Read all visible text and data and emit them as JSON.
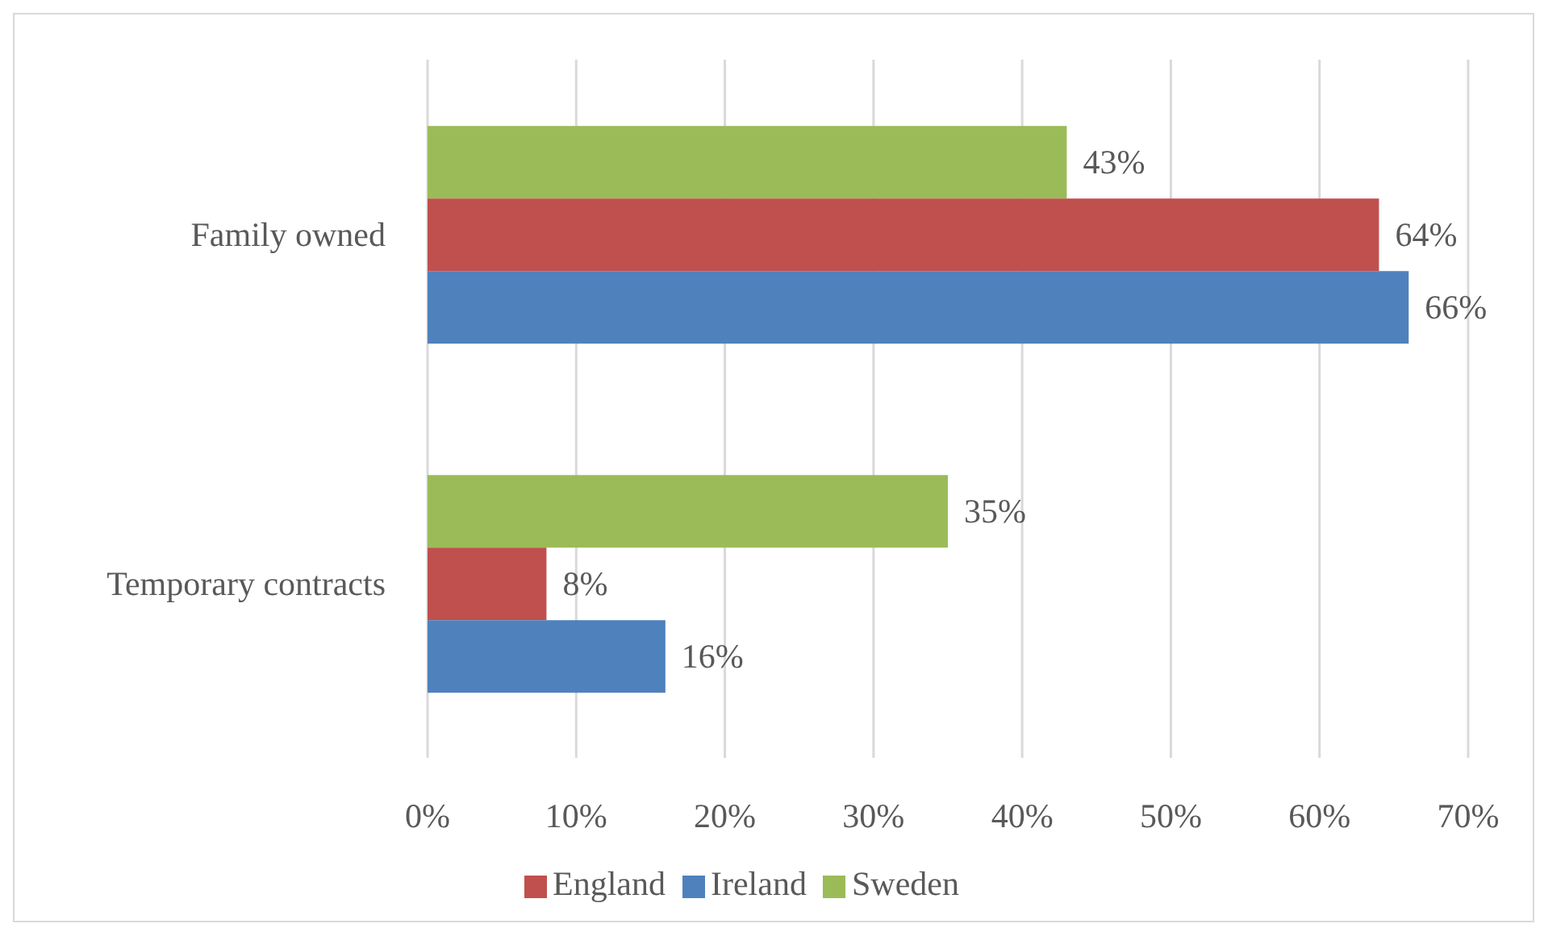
{
  "chart_data": {
    "type": "bar",
    "orientation": "horizontal",
    "categories": [
      "Family owned",
      "Temporary contracts"
    ],
    "series": [
      {
        "name": "Sweden",
        "color": "#9bbb59",
        "values": [
          43,
          35
        ],
        "value_labels": [
          "43%",
          "35%"
        ]
      },
      {
        "name": "England",
        "color": "#c0504d",
        "values": [
          64,
          8
        ],
        "value_labels": [
          "64%",
          "8%"
        ]
      },
      {
        "name": "Ireland",
        "color": "#4f81bd",
        "values": [
          66,
          16
        ],
        "value_labels": [
          "66%",
          "16%"
        ]
      }
    ],
    "xlim": [
      0,
      70
    ],
    "xticks": [
      {
        "value": 0,
        "label": "0%"
      },
      {
        "value": 10,
        "label": "10%"
      },
      {
        "value": 20,
        "label": "20%"
      },
      {
        "value": 30,
        "label": "30%"
      },
      {
        "value": 40,
        "label": "40%"
      },
      {
        "value": 50,
        "label": "50%"
      },
      {
        "value": 60,
        "label": "60%"
      },
      {
        "value": 70,
        "label": "70%"
      }
    ],
    "grid": "x",
    "legend": "bottom"
  }
}
